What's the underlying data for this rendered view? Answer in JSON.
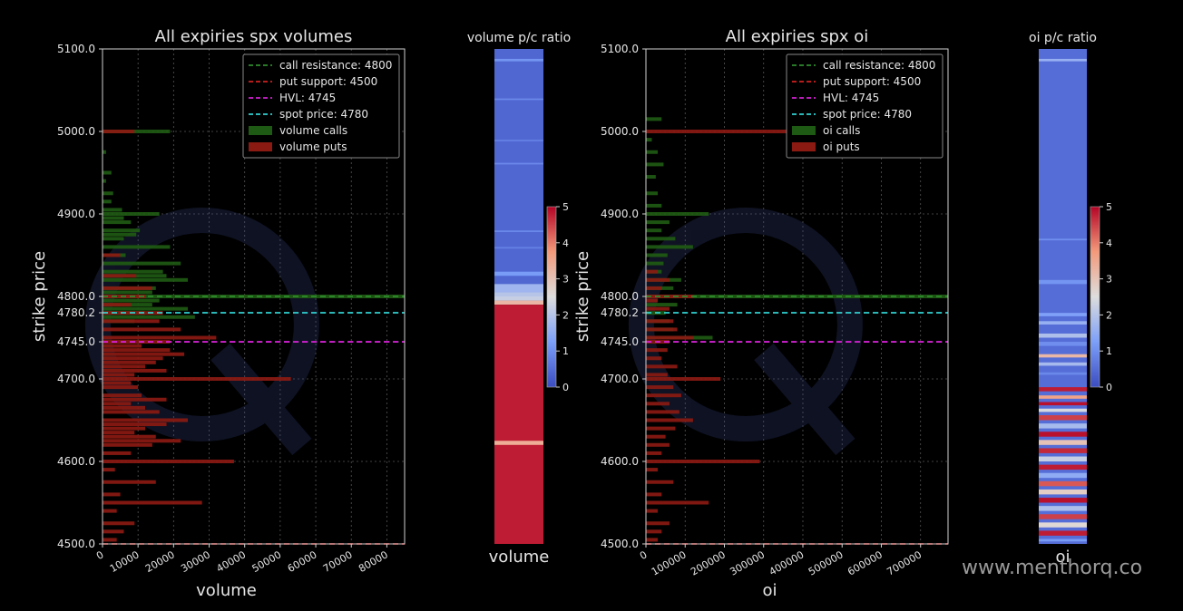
{
  "watermark": "www.menthorq.co",
  "chart_data": [
    {
      "type": "bar",
      "orientation": "horizontal",
      "title": "All expiries  spx volumes",
      "xlabel": "volume",
      "ylabel": "strike price",
      "xlim": [
        0,
        85000
      ],
      "ylim": [
        4500,
        5100
      ],
      "xticks": [
        0,
        10000,
        20000,
        30000,
        40000,
        50000,
        60000,
        70000,
        80000
      ],
      "yticks": [
        "4500.0",
        "4600.0",
        "4700.0",
        "4745.0",
        "4780.2",
        "4800.0",
        "4900.0",
        "5000.0",
        "5100.0"
      ],
      "grid": true,
      "legend_position": "top-right",
      "legend": [
        "call resistance: 4800",
        "put support: 4500",
        "HVL: 4745",
        "spot price: 4780",
        "volume calls",
        "volume puts"
      ],
      "lines": [
        {
          "name": "call resistance: 4800",
          "y": 4800,
          "color": "#2e8b2e"
        },
        {
          "name": "put support: 4500",
          "y": 4500,
          "color": "#d02020"
        },
        {
          "name": "HVL: 4745",
          "y": 4745,
          "color": "#d020d0"
        },
        {
          "name": "spot price: 4780",
          "y": 4780.2,
          "color": "#30d0d0"
        }
      ],
      "series": [
        {
          "name": "volume calls",
          "color": "#1f5a14",
          "points": [
            [
              5000,
              19000
            ],
            [
              4975,
              1000
            ],
            [
              4950,
              2500
            ],
            [
              4940,
              1000
            ],
            [
              4925,
              3000
            ],
            [
              4915,
              2500
            ],
            [
              4905,
              5500
            ],
            [
              4900,
              16000
            ],
            [
              4895,
              6000
            ],
            [
              4890,
              8000
            ],
            [
              4880,
              10500
            ],
            [
              4875,
              9500
            ],
            [
              4870,
              6000
            ],
            [
              4860,
              19000
            ],
            [
              4850,
              6500
            ],
            [
              4840,
              22000
            ],
            [
              4830,
              17000
            ],
            [
              4825,
              18000
            ],
            [
              4820,
              24000
            ],
            [
              4810,
              15000
            ],
            [
              4805,
              14000
            ],
            [
              4800,
              85000
            ],
            [
              4795,
              16000
            ],
            [
              4790,
              14000
            ],
            [
              4785,
              24000
            ],
            [
              4780,
              12000
            ],
            [
              4775,
              26000
            ],
            [
              4770,
              9000
            ]
          ]
        },
        {
          "name": "volume puts",
          "color": "#8b1a12",
          "points": [
            [
              5000,
              9000
            ],
            [
              4850,
              5000
            ],
            [
              4825,
              9500
            ],
            [
              4810,
              14000
            ],
            [
              4800,
              12000
            ],
            [
              4790,
              8000
            ],
            [
              4780,
              17000
            ],
            [
              4770,
              16000
            ],
            [
              4760,
              22000
            ],
            [
              4750,
              32000
            ],
            [
              4745,
              19000
            ],
            [
              4740,
              11000
            ],
            [
              4735,
              19000
            ],
            [
              4730,
              23000
            ],
            [
              4725,
              17000
            ],
            [
              4720,
              15000
            ],
            [
              4715,
              12000
            ],
            [
              4710,
              18000
            ],
            [
              4705,
              9000
            ],
            [
              4700,
              53000
            ],
            [
              4695,
              8000
            ],
            [
              4690,
              10000
            ],
            [
              4680,
              11000
            ],
            [
              4675,
              18000
            ],
            [
              4670,
              8000
            ],
            [
              4665,
              12000
            ],
            [
              4660,
              16000
            ],
            [
              4650,
              24000
            ],
            [
              4645,
              18000
            ],
            [
              4640,
              12000
            ],
            [
              4635,
              9000
            ],
            [
              4630,
              15000
            ],
            [
              4625,
              22000
            ],
            [
              4620,
              14000
            ],
            [
              4610,
              8000
            ],
            [
              4600,
              37000
            ],
            [
              4590,
              3500
            ],
            [
              4575,
              15000
            ],
            [
              4560,
              5000
            ],
            [
              4550,
              28000
            ],
            [
              4540,
              4000
            ],
            [
              4525,
              9000
            ],
            [
              4515,
              6000
            ],
            [
              4505,
              4000
            ]
          ]
        }
      ]
    },
    {
      "type": "heatmap",
      "title": "volume p/c ratio",
      "xlabel": "volume",
      "colorbar": {
        "min": 0,
        "max": 5,
        "ticks": [
          "0",
          "1",
          "2",
          "3",
          "4",
          "5"
        ],
        "colormap": "coolwarm"
      },
      "ylim": [
        4500,
        5100
      ],
      "bands": [
        [
          5100,
          4800,
          0.4
        ],
        [
          5088,
          5085,
          1.1
        ],
        [
          5040,
          5038,
          0.9
        ],
        [
          4990,
          4988,
          0.8
        ],
        [
          4962,
          4960,
          0.9
        ],
        [
          4880,
          4878,
          0.9
        ],
        [
          4860,
          4858,
          0.8
        ],
        [
          4830,
          4825,
          1.2
        ],
        [
          4815,
          4805,
          1.7
        ],
        [
          4805,
          4800,
          2.0
        ],
        [
          4800,
          4795,
          2.2
        ],
        [
          4795,
          4790,
          3.2
        ],
        [
          4790,
          4500,
          4.8
        ],
        [
          4625,
          4620,
          3.4
        ]
      ]
    },
    {
      "type": "bar",
      "orientation": "horizontal",
      "title": "All expiries  spx oi",
      "xlabel": "oi",
      "ylabel": "strike price",
      "xlim": [
        0,
        770000
      ],
      "ylim": [
        4500,
        5100
      ],
      "xticks": [
        0,
        100000,
        200000,
        300000,
        400000,
        500000,
        600000,
        700000
      ],
      "yticks": [
        "4500.0",
        "4600.0",
        "4700.0",
        "4745.0",
        "4780.2",
        "4800.0",
        "4900.0",
        "5000.0",
        "5100.0"
      ],
      "grid": true,
      "legend_position": "top-right",
      "legend": [
        "call resistance: 4800",
        "put support: 4500",
        "HVL: 4745",
        "spot price: 4780",
        "oi calls",
        "oi puts"
      ],
      "lines": [
        {
          "name": "call resistance: 4800",
          "y": 4800,
          "color": "#2e8b2e"
        },
        {
          "name": "put support: 4500",
          "y": 4500,
          "color": "#d02020"
        },
        {
          "name": "HVL: 4745",
          "y": 4745,
          "color": "#d020d0"
        },
        {
          "name": "spot price: 4780",
          "y": 4780.2,
          "color": "#30d0d0"
        }
      ],
      "series": [
        {
          "name": "oi calls",
          "color": "#1f5a14",
          "points": [
            [
              5015,
              40000
            ],
            [
              4990,
              15000
            ],
            [
              4975,
              30000
            ],
            [
              4960,
              45000
            ],
            [
              4945,
              25000
            ],
            [
              4925,
              30000
            ],
            [
              4910,
              40000
            ],
            [
              4900,
              160000
            ],
            [
              4890,
              60000
            ],
            [
              4880,
              40000
            ],
            [
              4870,
              75000
            ],
            [
              4860,
              120000
            ],
            [
              4850,
              55000
            ],
            [
              4840,
              45000
            ],
            [
              4830,
              40000
            ],
            [
              4820,
              90000
            ],
            [
              4810,
              70000
            ],
            [
              4800,
              770000
            ],
            [
              4790,
              80000
            ],
            [
              4780,
              50000
            ],
            [
              4770,
              60000
            ],
            [
              4760,
              70000
            ],
            [
              4750,
              170000
            ]
          ]
        },
        {
          "name": "oi puts",
          "color": "#8b1a12",
          "points": [
            [
              5000,
              660000
            ],
            [
              4830,
              30000
            ],
            [
              4820,
              60000
            ],
            [
              4810,
              40000
            ],
            [
              4800,
              120000
            ],
            [
              4795,
              30000
            ],
            [
              4785,
              60000
            ],
            [
              4770,
              70000
            ],
            [
              4760,
              80000
            ],
            [
              4750,
              120000
            ],
            [
              4745,
              60000
            ],
            [
              4735,
              55000
            ],
            [
              4725,
              40000
            ],
            [
              4715,
              80000
            ],
            [
              4705,
              55000
            ],
            [
              4700,
              190000
            ],
            [
              4690,
              70000
            ],
            [
              4680,
              90000
            ],
            [
              4670,
              60000
            ],
            [
              4660,
              85000
            ],
            [
              4650,
              120000
            ],
            [
              4640,
              75000
            ],
            [
              4630,
              50000
            ],
            [
              4620,
              60000
            ],
            [
              4610,
              40000
            ],
            [
              4600,
              290000
            ],
            [
              4590,
              30000
            ],
            [
              4575,
              70000
            ],
            [
              4560,
              40000
            ],
            [
              4550,
              160000
            ],
            [
              4540,
              30000
            ],
            [
              4525,
              60000
            ],
            [
              4515,
              40000
            ],
            [
              4505,
              30000
            ]
          ]
        }
      ]
    },
    {
      "type": "heatmap",
      "title": "oi p/c ratio",
      "xlabel": "oi",
      "colorbar": {
        "min": 0,
        "max": 5,
        "ticks": [
          "0",
          "1",
          "2",
          "3",
          "4",
          "5"
        ],
        "colormap": "coolwarm"
      },
      "ylim": [
        4500,
        5100
      ],
      "bands": [
        [
          5100,
          4500,
          0.5
        ],
        [
          5088,
          5085,
          1.6
        ],
        [
          4870,
          4868,
          1.0
        ],
        [
          4820,
          4815,
          1.1
        ],
        [
          4780,
          4776,
          1.3
        ],
        [
          4770,
          4766,
          1.6
        ],
        [
          4755,
          4750,
          1.9
        ],
        [
          4745,
          4740,
          1.0
        ],
        [
          4730,
          4726,
          3.2
        ],
        [
          4720,
          4716,
          1.8
        ],
        [
          4708,
          4705,
          0.9
        ],
        [
          4690,
          4685,
          4.8
        ],
        [
          4680,
          4676,
          3.6
        ],
        [
          4672,
          4668,
          4.9
        ],
        [
          4664,
          4660,
          2.4
        ],
        [
          4656,
          4650,
          4.5
        ],
        [
          4646,
          4640,
          1.8
        ],
        [
          4636,
          4630,
          4.9
        ],
        [
          4626,
          4620,
          3.0
        ],
        [
          4616,
          4610,
          4.7
        ],
        [
          4606,
          4600,
          2.2
        ],
        [
          4596,
          4590,
          4.8
        ],
        [
          4586,
          4580,
          1.5
        ],
        [
          4576,
          4570,
          4.3
        ],
        [
          4566,
          4560,
          2.8
        ],
        [
          4556,
          4550,
          4.9
        ],
        [
          4546,
          4540,
          1.9
        ],
        [
          4536,
          4530,
          4.5
        ],
        [
          4526,
          4520,
          2.6
        ],
        [
          4516,
          4510,
          4.8
        ],
        [
          4506,
          4503,
          1.2
        ]
      ]
    }
  ]
}
